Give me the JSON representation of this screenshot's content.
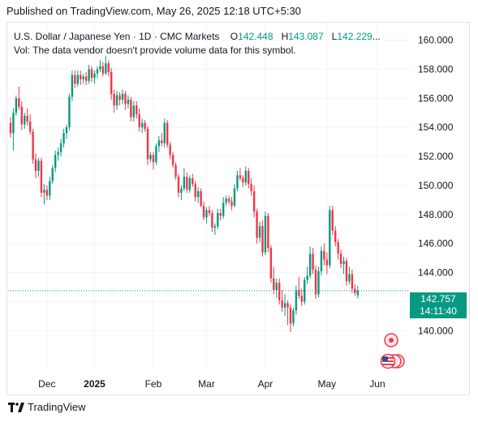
{
  "header": {
    "published": "Published on TradingView.com, May 26, 2025 12:18 UTC+5:30"
  },
  "legend": {
    "symbol": "U.S. Dollar / Japanese Yen · 1D · CMC Markets",
    "o_label": "O",
    "o_value": "142.448",
    "h_label": "H",
    "h_value": "143.087",
    "l_label": "L",
    "l_value": "142.229",
    "more": "...",
    "volume_note": "Vol: The data vendor doesn't provide volume data for this symbol."
  },
  "price_tag": {
    "price": "142.757",
    "countdown": "14:11:40"
  },
  "footer": {
    "brand": "TradingView"
  },
  "colors": {
    "up": "#089981",
    "down": "#f23645",
    "last_price": "#089981",
    "grid": "#f0f3fa"
  },
  "chart_data": {
    "type": "candlestick",
    "title": "U.S. Dollar / Japanese Yen · 1D · CMC Markets",
    "ylim": [
      137.4,
      161.2
    ],
    "y_ticks": [
      "140.000",
      "142.000",
      "144.000",
      "146.000",
      "148.000",
      "150.000",
      "152.000",
      "154.000",
      "156.000",
      "158.000",
      "160.000"
    ],
    "x_ticks": [
      {
        "label": "Dec",
        "index": 13,
        "bold": false
      },
      {
        "label": "2025",
        "index": 30,
        "bold": true
      },
      {
        "label": "Feb",
        "index": 51,
        "bold": false
      },
      {
        "label": "Mar",
        "index": 70,
        "bold": false
      },
      {
        "label": "Apr",
        "index": 91,
        "bold": false
      },
      {
        "label": "May",
        "index": 113,
        "bold": false
      },
      {
        "label": "Jun",
        "index": 131,
        "bold": false
      }
    ],
    "last_price": 142.757,
    "grid": true,
    "candles": [
      [
        154.3,
        154.7,
        153.3,
        153.6
      ],
      [
        153.6,
        155.3,
        152.4,
        155.0
      ],
      [
        155.0,
        156.2,
        154.8,
        156.0
      ],
      [
        156.0,
        156.8,
        155.2,
        155.4
      ],
      [
        155.4,
        155.8,
        153.8,
        154.2
      ],
      [
        154.2,
        155.0,
        153.9,
        154.8
      ],
      [
        154.8,
        155.3,
        154.1,
        154.4
      ],
      [
        154.4,
        154.9,
        153.5,
        153.7
      ],
      [
        153.7,
        153.9,
        151.5,
        151.8
      ],
      [
        151.8,
        152.2,
        150.5,
        151.0
      ],
      [
        151.0,
        151.9,
        150.6,
        151.7
      ],
      [
        151.7,
        151.9,
        149.2,
        149.5
      ],
      [
        149.5,
        150.1,
        148.7,
        149.7
      ],
      [
        149.7,
        150.0,
        149.0,
        149.3
      ],
      [
        149.3,
        150.6,
        149.0,
        150.3
      ],
      [
        150.3,
        151.4,
        150.1,
        151.2
      ],
      [
        151.2,
        152.4,
        150.9,
        152.1
      ],
      [
        152.1,
        152.6,
        151.7,
        152.3
      ],
      [
        152.3,
        153.2,
        152.0,
        152.9
      ],
      [
        152.9,
        153.9,
        152.6,
        153.6
      ],
      [
        153.6,
        154.2,
        153.2,
        154.0
      ],
      [
        154.0,
        156.3,
        153.8,
        156.1
      ],
      [
        156.1,
        157.9,
        155.8,
        157.6
      ],
      [
        157.6,
        157.9,
        156.7,
        157.0
      ],
      [
        157.0,
        157.9,
        156.8,
        157.6
      ],
      [
        157.6,
        157.9,
        156.9,
        157.3
      ],
      [
        157.3,
        157.7,
        157.0,
        157.5
      ],
      [
        157.5,
        157.8,
        156.9,
        157.2
      ],
      [
        157.2,
        158.3,
        157.0,
        158.0
      ],
      [
        158.0,
        158.2,
        157.1,
        157.4
      ],
      [
        157.4,
        157.9,
        157.0,
        157.7
      ],
      [
        157.7,
        158.2,
        157.4,
        158.0
      ],
      [
        158.0,
        158.6,
        157.8,
        158.2
      ],
      [
        158.2,
        158.5,
        157.5,
        157.7
      ],
      [
        157.7,
        158.9,
        157.6,
        158.4
      ],
      [
        158.4,
        158.6,
        157.5,
        157.8
      ],
      [
        157.8,
        158.1,
        155.9,
        156.3
      ],
      [
        156.3,
        156.6,
        155.0,
        155.5
      ],
      [
        155.5,
        156.5,
        155.2,
        156.2
      ],
      [
        156.2,
        156.4,
        155.5,
        155.9
      ],
      [
        155.9,
        156.6,
        155.6,
        156.3
      ],
      [
        156.3,
        156.5,
        155.2,
        155.6
      ],
      [
        155.6,
        156.2,
        155.3,
        155.9
      ],
      [
        155.9,
        156.1,
        154.4,
        154.7
      ],
      [
        154.7,
        155.8,
        154.4,
        155.5
      ],
      [
        155.5,
        155.8,
        154.6,
        154.9
      ],
      [
        154.9,
        155.3,
        153.7,
        154.0
      ],
      [
        154.0,
        154.6,
        153.6,
        154.3
      ],
      [
        154.3,
        154.5,
        153.7,
        153.9
      ],
      [
        153.9,
        154.1,
        151.4,
        151.8
      ],
      [
        151.8,
        152.3,
        151.6,
        152.1
      ],
      [
        152.1,
        152.3,
        151.1,
        151.6
      ],
      [
        151.6,
        152.9,
        151.4,
        152.7
      ],
      [
        152.7,
        153.4,
        152.3,
        153.1
      ],
      [
        153.1,
        153.6,
        152.7,
        152.9
      ],
      [
        152.9,
        154.6,
        152.6,
        154.3
      ],
      [
        154.3,
        154.5,
        152.6,
        152.8
      ],
      [
        152.8,
        153.0,
        151.8,
        152.1
      ],
      [
        152.1,
        152.3,
        151.2,
        151.4
      ],
      [
        151.4,
        151.6,
        150.4,
        150.6
      ],
      [
        150.6,
        150.8,
        149.2,
        149.5
      ],
      [
        149.5,
        150.0,
        149.0,
        149.8
      ],
      [
        149.8,
        151.2,
        149.6,
        150.6
      ],
      [
        150.6,
        150.9,
        149.5,
        149.7
      ],
      [
        149.7,
        150.7,
        149.5,
        150.5
      ],
      [
        150.5,
        150.8,
        149.9,
        150.1
      ],
      [
        150.1,
        150.3,
        148.9,
        149.2
      ],
      [
        149.2,
        149.9,
        148.8,
        149.6
      ],
      [
        149.6,
        149.8,
        148.5,
        148.6
      ],
      [
        148.6,
        148.9,
        147.6,
        147.8
      ],
      [
        147.8,
        148.5,
        147.4,
        148.3
      ],
      [
        148.3,
        148.6,
        147.9,
        148.1
      ],
      [
        148.1,
        148.3,
        146.8,
        147.1
      ],
      [
        147.1,
        147.4,
        146.6,
        147.2
      ],
      [
        147.2,
        148.4,
        147.0,
        148.1
      ],
      [
        148.1,
        148.4,
        147.6,
        147.9
      ],
      [
        147.9,
        149.2,
        147.7,
        148.8
      ],
      [
        148.8,
        149.3,
        148.6,
        149.1
      ],
      [
        149.1,
        149.3,
        148.7,
        148.9
      ],
      [
        148.9,
        149.2,
        148.3,
        148.6
      ],
      [
        148.6,
        150.1,
        148.5,
        149.8
      ],
      [
        149.8,
        151.0,
        149.6,
        150.7
      ],
      [
        150.7,
        151.2,
        150.3,
        150.5
      ],
      [
        150.5,
        150.7,
        149.9,
        150.2
      ],
      [
        150.2,
        151.3,
        150.0,
        151.0
      ],
      [
        151.0,
        151.2,
        149.8,
        150.1
      ],
      [
        150.1,
        150.5,
        149.3,
        149.6
      ],
      [
        149.6,
        150.0,
        147.8,
        148.2
      ],
      [
        148.2,
        148.4,
        146.0,
        146.4
      ],
      [
        146.4,
        147.5,
        146.1,
        147.2
      ],
      [
        147.2,
        147.6,
        145.1,
        145.4
      ],
      [
        145.4,
        148.2,
        145.2,
        147.9
      ],
      [
        147.9,
        148.1,
        145.4,
        145.7
      ],
      [
        145.7,
        145.9,
        143.3,
        143.6
      ],
      [
        143.6,
        144.4,
        142.5,
        142.8
      ],
      [
        142.8,
        143.6,
        142.3,
        143.3
      ],
      [
        143.3,
        143.6,
        141.8,
        142.1
      ],
      [
        142.1,
        142.8,
        141.3,
        141.6
      ],
      [
        141.6,
        142.5,
        141.0,
        141.9
      ],
      [
        141.9,
        142.1,
        140.4,
        141.6
      ],
      [
        141.6,
        141.8,
        139.9,
        140.5
      ],
      [
        140.5,
        141.6,
        140.3,
        141.4
      ],
      [
        141.4,
        143.1,
        141.1,
        142.8
      ],
      [
        142.8,
        143.7,
        142.2,
        142.4
      ],
      [
        142.4,
        142.9,
        141.7,
        142.0
      ],
      [
        142.0,
        143.7,
        141.8,
        143.5
      ],
      [
        143.5,
        144.4,
        143.2,
        143.8
      ],
      [
        143.8,
        145.8,
        143.6,
        145.3
      ],
      [
        145.3,
        145.7,
        143.9,
        144.2
      ],
      [
        144.2,
        144.5,
        142.2,
        142.5
      ],
      [
        142.5,
        144.4,
        142.3,
        144.1
      ],
      [
        144.1,
        145.8,
        143.8,
        145.5
      ],
      [
        145.5,
        146.0,
        144.5,
        144.9
      ],
      [
        144.9,
        145.4,
        143.9,
        144.5
      ],
      [
        144.5,
        148.6,
        144.3,
        148.3
      ],
      [
        148.3,
        148.6,
        146.6,
        146.9
      ],
      [
        146.9,
        147.2,
        145.8,
        146.1
      ],
      [
        146.1,
        146.3,
        144.9,
        145.3
      ],
      [
        145.3,
        145.6,
        144.3,
        144.6
      ],
      [
        144.6,
        145.1,
        143.9,
        144.8
      ],
      [
        144.8,
        145.0,
        143.1,
        143.4
      ],
      [
        143.4,
        144.4,
        143.2,
        143.9
      ],
      [
        143.9,
        144.2,
        142.6,
        142.9
      ],
      [
        142.9,
        143.2,
        142.4,
        142.6
      ],
      [
        142.448,
        143.087,
        142.229,
        142.757
      ]
    ]
  }
}
